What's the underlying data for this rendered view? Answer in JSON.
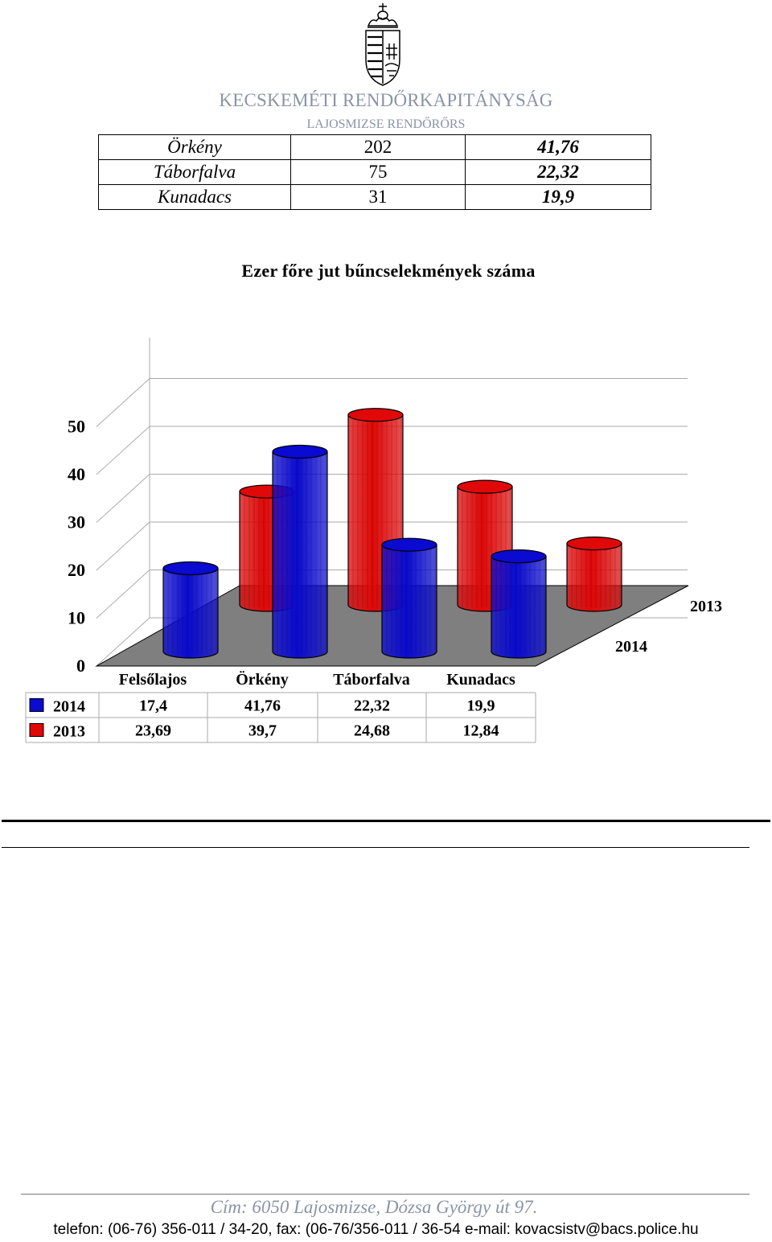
{
  "header": {
    "organization": "KECSKEMÉTI RENDŐRKAPITÁNYSÁG",
    "unit": "LAJOSMIZSE RENDŐRŐRS"
  },
  "table": {
    "rows": [
      {
        "name": "Örkény",
        "count": "202",
        "rate": "41,76"
      },
      {
        "name": "Táborfalva",
        "count": "75",
        "rate": "22,32"
      },
      {
        "name": "Kunadacs",
        "count": "31",
        "rate": "19,9"
      }
    ]
  },
  "chart_title": "Ezer főre jut bűncselekmények száma",
  "chart_data": {
    "type": "bar",
    "title": "Ezer főre jut bűncselekmények száma",
    "categories": [
      "Felsőlajos",
      "Örkény",
      "Táborfalva",
      "Kunadacs"
    ],
    "series": [
      {
        "name": "2014",
        "values": [
          17.4,
          41.76,
          22.32,
          19.9
        ],
        "labels": [
          "17,4",
          "41,76",
          "22,32",
          "19,9"
        ],
        "color": "#0a0ad0"
      },
      {
        "name": "2013",
        "values": [
          23.69,
          39.7,
          24.68,
          12.84
        ],
        "labels": [
          "23,69",
          "39,7",
          "24,68",
          "12,84"
        ],
        "color": "#e00808"
      }
    ],
    "y_ticks": [
      "0",
      "10",
      "20",
      "30",
      "40",
      "50"
    ],
    "ylim": [
      0,
      50
    ],
    "depth_labels": [
      "2014",
      "2013"
    ],
    "grid": true,
    "legend": "data-table-below"
  },
  "footer": {
    "address": "Cím: 6050 Lajosmizse, Dózsa György út 97.",
    "contact": "telefon: (06-76) 356-011 / 34-20, fax: (06-76/356-011 / 36-54 e-mail: kovacsistv@bacs.police.hu"
  },
  "colors": {
    "org_text": "#8a93a6",
    "floor": "#7f7f7f",
    "series_2014": "#0a0ad0",
    "series_2013": "#e00808"
  },
  "icons": [
    "hungarian-coat-of-arms-icon"
  ]
}
